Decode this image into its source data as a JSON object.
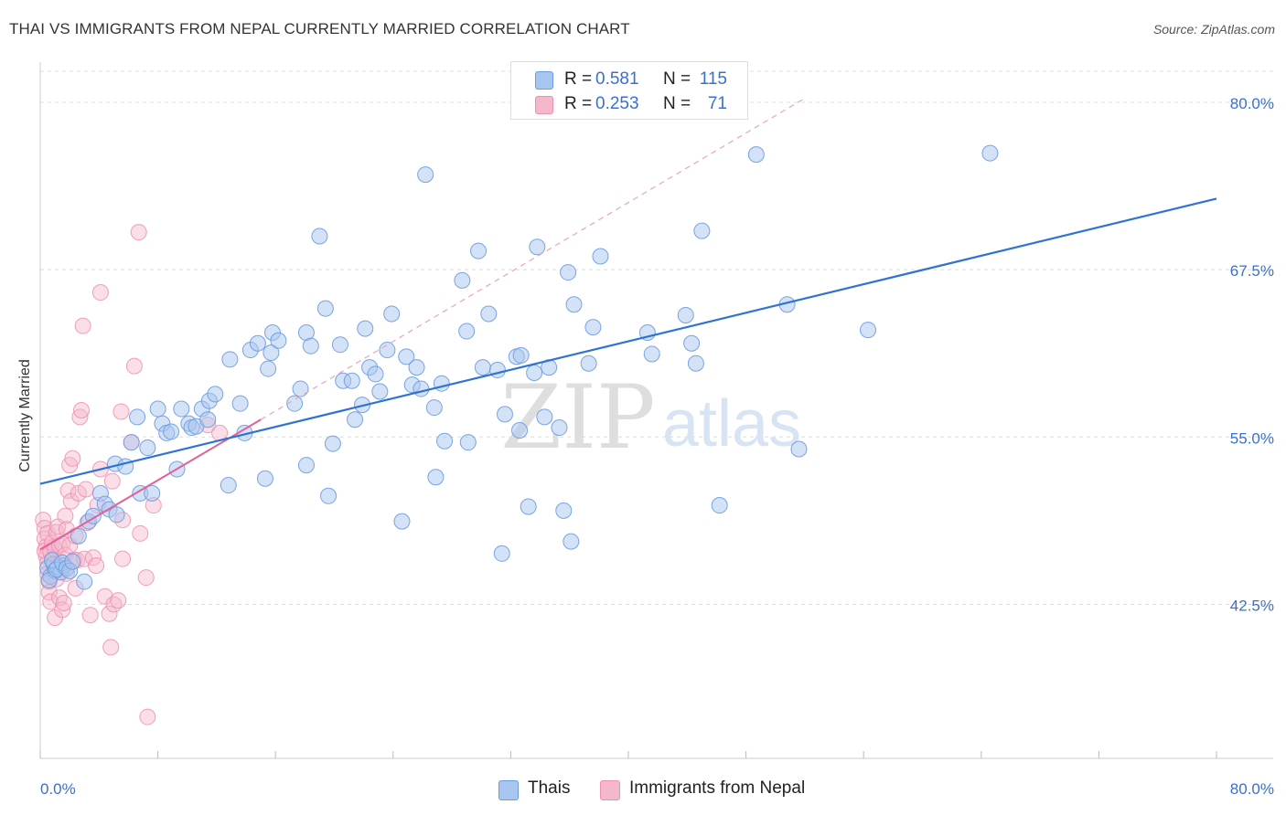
{
  "title": "THAI VS IMMIGRANTS FROM NEPAL CURRENTLY MARRIED CORRELATION CHART",
  "source": "Source: ZipAtlas.com",
  "watermark": {
    "zip": "ZIP",
    "atlas": "atlas"
  },
  "legend_top": [
    {
      "r_label": "R =",
      "r_value": "0.581",
      "n_label": "N =",
      "n_value": "115"
    },
    {
      "r_label": "R =",
      "r_value": "0.253",
      "n_label": "N =",
      "n_value": "71"
    }
  ],
  "legend_bottom": [
    "Thais",
    "Immigrants from Nepal"
  ],
  "colors": {
    "thais_fill": "#a9c6f0",
    "thais_stroke": "#6a9be0",
    "thais_line": "#2f74d0",
    "nepal_fill": "#f5b8cb",
    "nepal_stroke": "#ee8fae",
    "nepal_line": "#e0609a",
    "grid": "#dcdcdc",
    "axis_label": "#3a6fd0"
  },
  "chart_data": {
    "type": "scatter",
    "title": "THAI VS IMMIGRANTS FROM NEPAL CURRENTLY MARRIED CORRELATION CHART",
    "xlabel": "",
    "ylabel": "Currently Married",
    "xlim": [
      0,
      80
    ],
    "ylim": [
      31,
      83
    ],
    "x_tick_labels": [
      {
        "value": 0,
        "label": "0.0%"
      },
      {
        "value": 80,
        "label": "80.0%"
      }
    ],
    "y_tick_labels": [
      {
        "value": 80,
        "label": "80.0%"
      },
      {
        "value": 67.5,
        "label": "67.5%"
      },
      {
        "value": 55,
        "label": "55.0%"
      },
      {
        "value": 42.5,
        "label": "42.5%"
      }
    ],
    "x_minor_ticks": [
      0,
      8,
      16,
      24,
      32,
      40,
      48,
      56,
      64,
      72,
      80
    ],
    "grid": true,
    "legend_position": "top-center",
    "series": [
      {
        "name": "Thais",
        "R": 0.581,
        "N": 115,
        "trend": {
          "x0": 0,
          "y0": 51.5,
          "x1": 80,
          "y1": 72.8,
          "style": "solid"
        },
        "points": [
          [
            0.5,
            45.2
          ],
          [
            0.7,
            44.6
          ],
          [
            0.9,
            45.5
          ],
          [
            1.0,
            45.0
          ],
          [
            1.2,
            45.3
          ],
          [
            1.4,
            44.9
          ],
          [
            1.6,
            45.4
          ],
          [
            0.6,
            44.3
          ],
          [
            0.8,
            45.8
          ],
          [
            1.1,
            45.1
          ],
          [
            1.5,
            45.6
          ],
          [
            1.8,
            45.2
          ],
          [
            2.0,
            45.0
          ],
          [
            2.2,
            45.7
          ],
          [
            2.6,
            47.6
          ],
          [
            3.0,
            44.2
          ],
          [
            3.3,
            48.7
          ],
          [
            3.6,
            49.1
          ],
          [
            4.1,
            50.8
          ],
          [
            4.4,
            50.0
          ],
          [
            4.7,
            49.6
          ],
          [
            5.2,
            49.2
          ],
          [
            5.1,
            53.0
          ],
          [
            5.8,
            52.8
          ],
          [
            6.2,
            54.6
          ],
          [
            6.6,
            56.5
          ],
          [
            6.8,
            50.8
          ],
          [
            7.3,
            54.2
          ],
          [
            7.6,
            50.8
          ],
          [
            8.0,
            57.1
          ],
          [
            8.3,
            56.0
          ],
          [
            8.6,
            55.3
          ],
          [
            8.9,
            55.4
          ],
          [
            9.3,
            52.6
          ],
          [
            9.6,
            57.1
          ],
          [
            10.1,
            56.0
          ],
          [
            10.3,
            55.7
          ],
          [
            10.6,
            55.8
          ],
          [
            11.0,
            57.1
          ],
          [
            11.4,
            56.3
          ],
          [
            11.5,
            57.7
          ],
          [
            11.9,
            58.2
          ],
          [
            12.8,
            51.4
          ],
          [
            12.9,
            60.8
          ],
          [
            13.6,
            57.5
          ],
          [
            13.9,
            55.3
          ],
          [
            14.3,
            61.5
          ],
          [
            14.8,
            62.0
          ],
          [
            15.5,
            60.1
          ],
          [
            15.7,
            61.3
          ],
          [
            15.3,
            51.9
          ],
          [
            15.8,
            62.8
          ],
          [
            16.2,
            62.2
          ],
          [
            17.3,
            57.5
          ],
          [
            17.7,
            58.6
          ],
          [
            18.1,
            62.8
          ],
          [
            18.4,
            61.8
          ],
          [
            18.1,
            52.9
          ],
          [
            19.0,
            70.0
          ],
          [
            19.4,
            64.6
          ],
          [
            19.6,
            50.6
          ],
          [
            19.9,
            54.5
          ],
          [
            20.4,
            61.9
          ],
          [
            20.6,
            59.2
          ],
          [
            21.2,
            59.2
          ],
          [
            21.4,
            56.3
          ],
          [
            21.9,
            57.4
          ],
          [
            22.1,
            63.1
          ],
          [
            22.4,
            60.2
          ],
          [
            22.8,
            59.7
          ],
          [
            23.1,
            58.4
          ],
          [
            23.6,
            61.5
          ],
          [
            23.9,
            64.2
          ],
          [
            24.6,
            48.7
          ],
          [
            24.9,
            61.0
          ],
          [
            25.3,
            58.9
          ],
          [
            25.6,
            60.2
          ],
          [
            25.9,
            58.6
          ],
          [
            26.2,
            74.6
          ],
          [
            26.9,
            52.0
          ],
          [
            26.8,
            57.2
          ],
          [
            27.3,
            59.0
          ],
          [
            27.5,
            54.7
          ],
          [
            28.7,
            66.7
          ],
          [
            29.0,
            62.9
          ],
          [
            29.1,
            54.6
          ],
          [
            29.8,
            68.9
          ],
          [
            30.1,
            60.2
          ],
          [
            30.5,
            64.2
          ],
          [
            31.1,
            60.0
          ],
          [
            31.4,
            46.3
          ],
          [
            31.6,
            56.7
          ],
          [
            32.4,
            61.0
          ],
          [
            32.7,
            61.1
          ],
          [
            32.6,
            55.5
          ],
          [
            33.2,
            49.8
          ],
          [
            33.6,
            59.8
          ],
          [
            33.8,
            69.2
          ],
          [
            34.3,
            56.5
          ],
          [
            34.6,
            60.2
          ],
          [
            35.3,
            55.7
          ],
          [
            35.6,
            49.5
          ],
          [
            35.9,
            67.3
          ],
          [
            36.1,
            47.2
          ],
          [
            36.3,
            64.9
          ],
          [
            37.3,
            60.5
          ],
          [
            37.6,
            63.2
          ],
          [
            38.1,
            68.5
          ],
          [
            41.3,
            62.8
          ],
          [
            41.6,
            61.2
          ],
          [
            43.9,
            64.1
          ],
          [
            44.3,
            62.0
          ],
          [
            44.6,
            60.5
          ],
          [
            45.0,
            70.4
          ],
          [
            46.2,
            49.9
          ],
          [
            48.7,
            76.1
          ],
          [
            50.8,
            64.9
          ],
          [
            51.6,
            54.1
          ],
          [
            56.3,
            63.0
          ],
          [
            64.6,
            76.2
          ]
        ]
      },
      {
        "name": "Immigrants from Nepal",
        "R": 0.253,
        "N": 71,
        "trend_solid": {
          "x0": 0,
          "y0": 46.6,
          "x1": 15.0,
          "y1": 56.3
        },
        "trend_dashed": {
          "x0": 15.0,
          "y0": 56.3,
          "x1": 52.0,
          "y1": 80.3
        },
        "points": [
          [
            0.2,
            48.8
          ],
          [
            0.3,
            48.2
          ],
          [
            0.3,
            47.4
          ],
          [
            0.4,
            46.8
          ],
          [
            0.4,
            46.1
          ],
          [
            0.5,
            45.6
          ],
          [
            0.5,
            44.8
          ],
          [
            0.6,
            44.2
          ],
          [
            0.6,
            43.4
          ],
          [
            0.7,
            42.7
          ],
          [
            0.3,
            46.5
          ],
          [
            0.5,
            47.8
          ],
          [
            0.7,
            46.4
          ],
          [
            0.8,
            47.1
          ],
          [
            0.9,
            45.9
          ],
          [
            1.0,
            46.6
          ],
          [
            1.0,
            41.5
          ],
          [
            1.1,
            47.9
          ],
          [
            1.1,
            44.4
          ],
          [
            1.2,
            48.3
          ],
          [
            1.3,
            46.9
          ],
          [
            1.3,
            43.0
          ],
          [
            1.4,
            45.7
          ],
          [
            1.5,
            47.0
          ],
          [
            1.5,
            42.1
          ],
          [
            1.6,
            45.2
          ],
          [
            1.6,
            42.6
          ],
          [
            1.7,
            46.2
          ],
          [
            1.7,
            49.1
          ],
          [
            1.8,
            44.8
          ],
          [
            1.8,
            48.1
          ],
          [
            1.9,
            51.0
          ],
          [
            2.0,
            52.9
          ],
          [
            2.0,
            46.9
          ],
          [
            2.1,
            50.2
          ],
          [
            2.2,
            53.4
          ],
          [
            2.3,
            45.8
          ],
          [
            2.4,
            47.6
          ],
          [
            2.4,
            43.7
          ],
          [
            2.5,
            45.8
          ],
          [
            2.6,
            50.8
          ],
          [
            2.7,
            56.5
          ],
          [
            2.8,
            57.0
          ],
          [
            2.9,
            63.3
          ],
          [
            3.0,
            45.9
          ],
          [
            3.1,
            51.1
          ],
          [
            3.2,
            48.6
          ],
          [
            3.4,
            41.7
          ],
          [
            3.6,
            46.0
          ],
          [
            3.8,
            45.4
          ],
          [
            3.9,
            49.9
          ],
          [
            4.1,
            52.6
          ],
          [
            4.1,
            65.8
          ],
          [
            4.4,
            43.1
          ],
          [
            4.7,
            41.8
          ],
          [
            4.8,
            39.3
          ],
          [
            4.9,
            51.7
          ],
          [
            5.0,
            42.5
          ],
          [
            5.3,
            42.8
          ],
          [
            5.5,
            56.9
          ],
          [
            5.6,
            45.9
          ],
          [
            5.6,
            48.8
          ],
          [
            6.2,
            54.6
          ],
          [
            6.4,
            60.3
          ],
          [
            6.7,
            70.3
          ],
          [
            6.8,
            47.8
          ],
          [
            7.2,
            44.5
          ],
          [
            7.3,
            34.1
          ],
          [
            7.7,
            49.9
          ],
          [
            11.4,
            55.9
          ],
          [
            12.2,
            55.3
          ]
        ]
      }
    ]
  }
}
